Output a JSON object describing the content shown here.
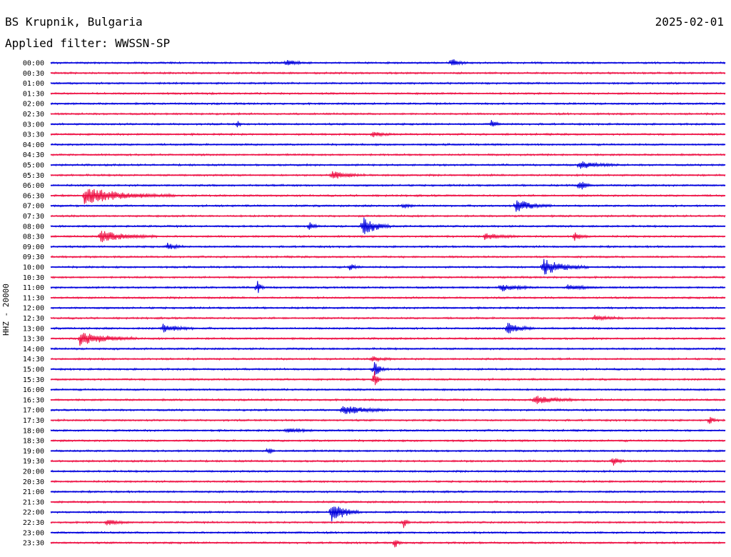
{
  "header": {
    "title": "BS Krupnik, Bulgaria",
    "filter": "Applied filter: WWSSN-SP",
    "date": "2025-02-01"
  },
  "chart_data": {
    "type": "line",
    "title": "BS Krupnik, Bulgaria",
    "subtitle": "Applied filter: WWSSN-SP",
    "date": "2025-02-01",
    "ylabel": "HHZ - 20000",
    "colors": {
      "even": "#0000dd",
      "odd": "#ee1144"
    },
    "rows": [
      "00:00",
      "00:30",
      "01:00",
      "01:30",
      "02:00",
      "02:30",
      "03:00",
      "03:30",
      "04:00",
      "04:30",
      "05:00",
      "05:30",
      "06:00",
      "06:30",
      "07:00",
      "07:30",
      "08:00",
      "08:30",
      "09:00",
      "09:30",
      "10:00",
      "10:30",
      "11:00",
      "11:30",
      "12:00",
      "12:30",
      "13:00",
      "13:30",
      "14:00",
      "14:30",
      "15:00",
      "15:30",
      "16:00",
      "16:30",
      "17:00",
      "17:30",
      "18:00",
      "18:30",
      "19:00",
      "19:30",
      "20:00",
      "20:30",
      "21:00",
      "21:30",
      "22:00",
      "22:30",
      "23:00",
      "23:30"
    ],
    "events": [
      {
        "row": "00:00",
        "minute": 10.5,
        "amp": 0.45,
        "dur": 0.8
      },
      {
        "row": "00:00",
        "minute": 17.8,
        "amp": 0.55,
        "dur": 0.7
      },
      {
        "row": "03:00",
        "minute": 8.3,
        "amp": 0.6,
        "dur": 0.2
      },
      {
        "row": "03:00",
        "minute": 19.6,
        "amp": 0.5,
        "dur": 0.4
      },
      {
        "row": "03:30",
        "minute": 14.3,
        "amp": 0.3,
        "dur": 1.0
      },
      {
        "row": "05:00",
        "minute": 23.5,
        "amp": 0.45,
        "dur": 1.8
      },
      {
        "row": "05:30",
        "minute": 12.5,
        "amp": 0.5,
        "dur": 1.5
      },
      {
        "row": "06:00",
        "minute": 23.5,
        "amp": 0.75,
        "dur": 0.6
      },
      {
        "row": "06:30",
        "minute": 1.5,
        "amp": 1.0,
        "dur": 4.0
      },
      {
        "row": "07:00",
        "minute": 20.7,
        "amp": 0.8,
        "dur": 1.6
      },
      {
        "row": "07:00",
        "minute": 15.7,
        "amp": 0.3,
        "dur": 0.5
      },
      {
        "row": "08:00",
        "minute": 13.9,
        "amp": 1.2,
        "dur": 1.2
      },
      {
        "row": "08:00",
        "minute": 11.5,
        "amp": 0.45,
        "dur": 0.5
      },
      {
        "row": "08:30",
        "minute": 2.2,
        "amp": 0.75,
        "dur": 2.5
      },
      {
        "row": "08:30",
        "minute": 23.3,
        "amp": 0.6,
        "dur": 0.6
      },
      {
        "row": "08:30",
        "minute": 19.3,
        "amp": 0.4,
        "dur": 1.5
      },
      {
        "row": "09:00",
        "minute": 5.2,
        "amp": 0.4,
        "dur": 0.8
      },
      {
        "row": "10:00",
        "minute": 21.9,
        "amp": 1.0,
        "dur": 2.0
      },
      {
        "row": "10:00",
        "minute": 13.3,
        "amp": 0.4,
        "dur": 0.5
      },
      {
        "row": "11:00",
        "minute": 9.2,
        "amp": 0.9,
        "dur": 0.3
      },
      {
        "row": "11:00",
        "minute": 20.0,
        "amp": 0.45,
        "dur": 1.5
      },
      {
        "row": "11:00",
        "minute": 23.0,
        "amp": 0.35,
        "dur": 1.3
      },
      {
        "row": "12:30",
        "minute": 24.2,
        "amp": 0.4,
        "dur": 1.2
      },
      {
        "row": "13:00",
        "minute": 5.0,
        "amp": 0.55,
        "dur": 1.4
      },
      {
        "row": "13:00",
        "minute": 20.3,
        "amp": 0.7,
        "dur": 1.3
      },
      {
        "row": "13:30",
        "minute": 1.3,
        "amp": 0.9,
        "dur": 2.5
      },
      {
        "row": "14:30",
        "minute": 14.3,
        "amp": 0.3,
        "dur": 1.0
      },
      {
        "row": "15:00",
        "minute": 14.4,
        "amp": 1.0,
        "dur": 0.5
      },
      {
        "row": "15:30",
        "minute": 14.4,
        "amp": 1.3,
        "dur": 0.3
      },
      {
        "row": "16:30",
        "minute": 21.5,
        "amp": 0.55,
        "dur": 2.0
      },
      {
        "row": "17:00",
        "minute": 13.0,
        "amp": 0.65,
        "dur": 2.0
      },
      {
        "row": "17:30",
        "minute": 29.3,
        "amp": 0.45,
        "dur": 0.4
      },
      {
        "row": "18:00",
        "minute": 10.5,
        "amp": 0.3,
        "dur": 1.5
      },
      {
        "row": "19:00",
        "minute": 9.7,
        "amp": 0.5,
        "dur": 0.3
      },
      {
        "row": "19:30",
        "minute": 25.0,
        "amp": 0.55,
        "dur": 0.6
      },
      {
        "row": "22:00",
        "minute": 12.5,
        "amp": 1.5,
        "dur": 1.2
      },
      {
        "row": "22:30",
        "minute": 15.7,
        "amp": 0.6,
        "dur": 0.3
      },
      {
        "row": "22:30",
        "minute": 2.5,
        "amp": 0.35,
        "dur": 1.0
      },
      {
        "row": "23:30",
        "minute": 15.3,
        "amp": 0.8,
        "dur": 0.3
      }
    ],
    "grid": false,
    "legend": "none"
  }
}
